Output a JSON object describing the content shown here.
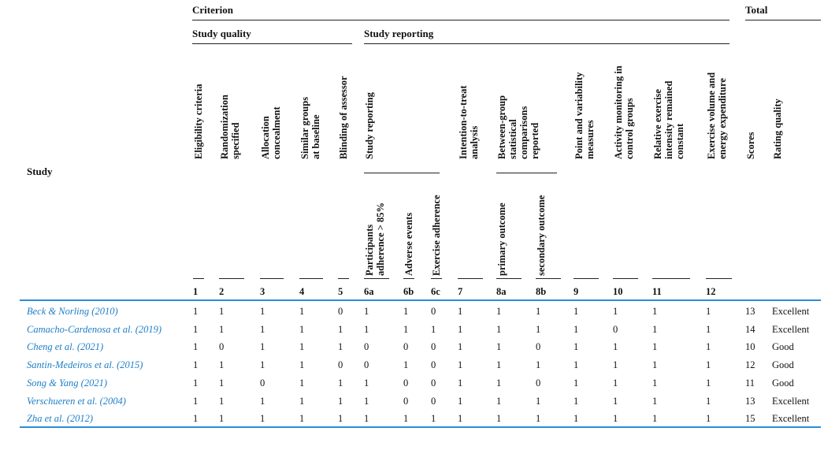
{
  "header": {
    "criterion": "Criterion",
    "total": "Total",
    "study_quality": "Study quality",
    "study_reporting": "Study reporting",
    "study": "Study"
  },
  "columns": [
    {
      "label": "Eligibility criteria",
      "num": "1"
    },
    {
      "label": "Randomization\nspecified",
      "num": "2"
    },
    {
      "label": "Allocation\nconcealment",
      "num": "3"
    },
    {
      "label": "Similar groups\nat baseline",
      "num": "4"
    },
    {
      "label": "Blinding of assessor",
      "num": "5"
    },
    {
      "label": "Participants\nadherence > 85%",
      "num": "6a"
    },
    {
      "label": "Adverse events",
      "num": "6b"
    },
    {
      "label": "Exercise adherence",
      "num": "6c"
    },
    {
      "label": "Intention-to-treat\nanalysis",
      "num": "7"
    },
    {
      "label": "primary outcome",
      "num": "8a"
    },
    {
      "label": "secondary outcome",
      "num": "8b"
    },
    {
      "label": "Point and variability\nmeasures",
      "num": "9"
    },
    {
      "label": "Activity monitoring in\ncontrol groups",
      "num": "10"
    },
    {
      "label": "Relative exercise\nintensity remained\nconstant",
      "num": "11"
    },
    {
      "label": "Exercise volume and\nenergy expenditure",
      "num": "12"
    },
    {
      "label": "Scores",
      "num": ""
    },
    {
      "label": "Rating quality",
      "num": ""
    }
  ],
  "group_labels": {
    "study_reporting_sub": "Study reporting",
    "between_group": "Between-group\nstatistical\ncomparisons\nreported"
  },
  "rows": [
    {
      "study": "Beck & Norling (2010)",
      "values": [
        "1",
        "1",
        "1",
        "1",
        "0",
        "1",
        "1",
        "0",
        "1",
        "1",
        "1",
        "1",
        "1",
        "1",
        "1"
      ],
      "score": "13",
      "rating": "Excellent"
    },
    {
      "study": "Camacho-Cardenosa et al. (2019)",
      "values": [
        "1",
        "1",
        "1",
        "1",
        "1",
        "1",
        "1",
        "1",
        "1",
        "1",
        "1",
        "1",
        "0",
        "1",
        "1"
      ],
      "score": "14",
      "rating": "Excellent"
    },
    {
      "study": "Cheng et al. (2021)",
      "values": [
        "1",
        "0",
        "1",
        "1",
        "1",
        "0",
        "0",
        "0",
        "1",
        "1",
        "0",
        "1",
        "1",
        "1",
        "1"
      ],
      "score": "10",
      "rating": "Good"
    },
    {
      "study": "Santin-Medeiros et al. (2015)",
      "values": [
        "1",
        "1",
        "1",
        "1",
        "0",
        "0",
        "1",
        "0",
        "1",
        "1",
        "1",
        "1",
        "1",
        "1",
        "1"
      ],
      "score": "12",
      "rating": "Good"
    },
    {
      "study": "Song & Yang (2021)",
      "values": [
        "1",
        "1",
        "0",
        "1",
        "1",
        "1",
        "0",
        "0",
        "1",
        "1",
        "0",
        "1",
        "1",
        "1",
        "1"
      ],
      "score": "11",
      "rating": "Good"
    },
    {
      "study": "Verschueren et al. (2004)",
      "values": [
        "1",
        "1",
        "1",
        "1",
        "1",
        "1",
        "0",
        "0",
        "1",
        "1",
        "1",
        "1",
        "1",
        "1",
        "1"
      ],
      "score": "13",
      "rating": "Excellent"
    },
    {
      "study": "Zha et al. (2012)",
      "values": [
        "1",
        "1",
        "1",
        "1",
        "1",
        "1",
        "1",
        "1",
        "1",
        "1",
        "1",
        "1",
        "1",
        "1",
        "1"
      ],
      "score": "15",
      "rating": "Excellent"
    }
  ]
}
